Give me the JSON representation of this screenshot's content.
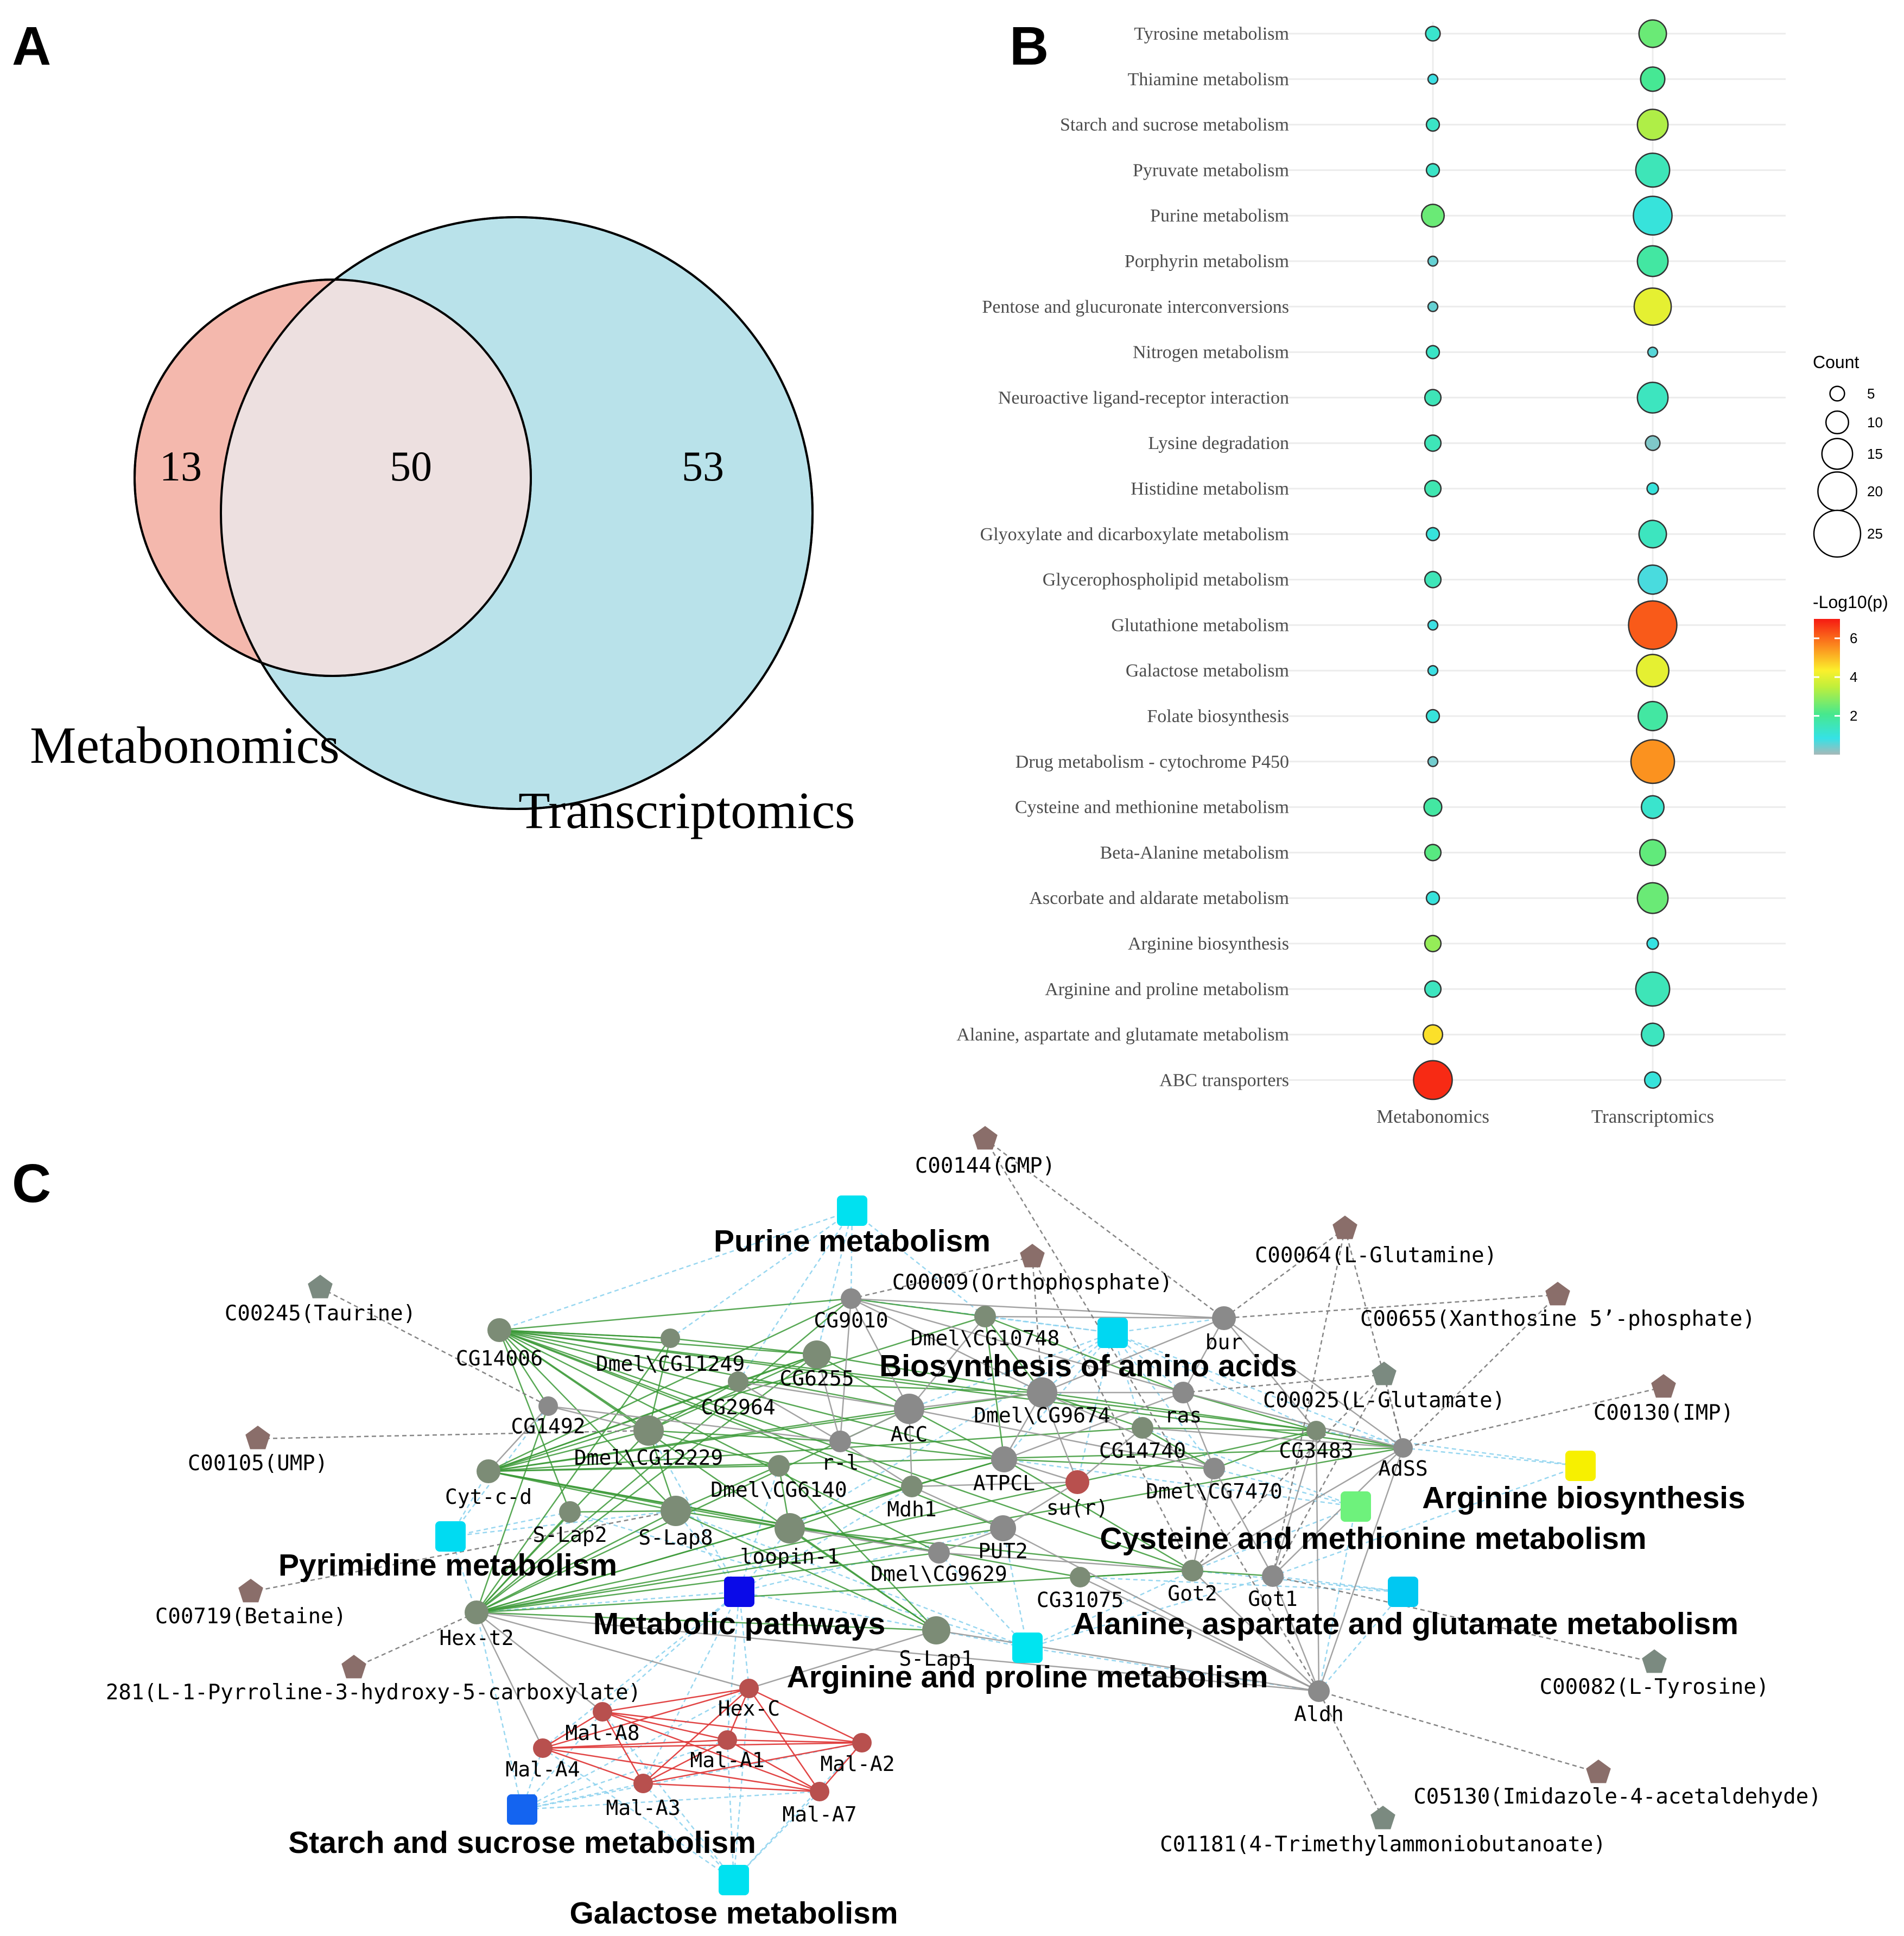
{
  "panels": {
    "a": "A",
    "b": "B",
    "c": "C"
  },
  "chart_data": [
    {
      "type": "venn",
      "sets": [
        {
          "name": "Metabonomics",
          "color": "#f4b8ad"
        },
        {
          "name": "Transcriptomics",
          "color": "#b9e2ea"
        }
      ],
      "regions": {
        "only_first": "13",
        "intersection": "50",
        "only_second": "53"
      }
    },
    {
      "type": "bubble",
      "columns": [
        "Metabonomics",
        "Transcriptomics"
      ],
      "size_legend": {
        "title": "Count",
        "values": [
          5,
          10,
          15,
          20,
          25
        ]
      },
      "color_legend": {
        "title": "-Log10(p)",
        "ticks": [
          2,
          4,
          6
        ],
        "range": [
          0,
          7
        ]
      },
      "rows": [
        {
          "pathway": "Tyrosine metabolism",
          "m": {
            "count": 5,
            "logp": 1.2
          },
          "t": {
            "count": 13,
            "logp": 2.5
          }
        },
        {
          "pathway": "Thiamine metabolism",
          "m": {
            "count": 2,
            "logp": 0.8
          },
          "t": {
            "count": 11,
            "logp": 2.0
          }
        },
        {
          "pathway": "Starch and sucrose metabolism",
          "m": {
            "count": 4,
            "logp": 1.3
          },
          "t": {
            "count": 15,
            "logp": 3.3
          }
        },
        {
          "pathway": "Pyruvate metabolism",
          "m": {
            "count": 4,
            "logp": 1.3
          },
          "t": {
            "count": 17,
            "logp": 1.5
          }
        },
        {
          "pathway": "Purine metabolism",
          "m": {
            "count": 10,
            "logp": 2.5
          },
          "t": {
            "count": 20,
            "logp": 1.0
          }
        },
        {
          "pathway": "Porphyrin metabolism",
          "m": {
            "count": 2,
            "logp": 0.5
          },
          "t": {
            "count": 15,
            "logp": 1.8
          }
        },
        {
          "pathway": "Pentose and glucuronate interconversions",
          "m": {
            "count": 2,
            "logp": 0.5
          },
          "t": {
            "count": 19,
            "logp": 4.0
          }
        },
        {
          "pathway": "Nitrogen metabolism",
          "m": {
            "count": 4,
            "logp": 1.3
          },
          "t": {
            "count": 2,
            "logp": 0.6
          }
        },
        {
          "pathway": "Neuroactive ligand-receptor interaction",
          "m": {
            "count": 6,
            "logp": 1.5
          },
          "t": {
            "count": 15,
            "logp": 1.4
          }
        },
        {
          "pathway": "Lysine degradation",
          "m": {
            "count": 6,
            "logp": 1.5
          },
          "t": {
            "count": 5,
            "logp": 0.3
          }
        },
        {
          "pathway": "Histidine metabolism",
          "m": {
            "count": 6,
            "logp": 1.6
          },
          "t": {
            "count": 3,
            "logp": 1.0
          }
        },
        {
          "pathway": "Glyoxylate and dicarboxylate metabolism",
          "m": {
            "count": 4,
            "logp": 1.0
          },
          "t": {
            "count": 13,
            "logp": 1.4
          }
        },
        {
          "pathway": "Glycerophospholipid metabolism",
          "m": {
            "count": 6,
            "logp": 1.5
          },
          "t": {
            "count": 14,
            "logp": 0.7
          }
        },
        {
          "pathway": "Glutathione metabolism",
          "m": {
            "count": 2,
            "logp": 0.8
          },
          "t": {
            "count": 26,
            "logp": 6.2
          }
        },
        {
          "pathway": "Galactose metabolism",
          "m": {
            "count": 2,
            "logp": 0.8
          },
          "t": {
            "count": 16,
            "logp": 4.0
          }
        },
        {
          "pathway": "Folate biosynthesis",
          "m": {
            "count": 4,
            "logp": 1.0
          },
          "t": {
            "count": 14,
            "logp": 1.8
          }
        },
        {
          "pathway": "Drug metabolism - cytochrome P450",
          "m": {
            "count": 2,
            "logp": 0.4
          },
          "t": {
            "count": 23,
            "logp": 5.5
          }
        },
        {
          "pathway": "Cysteine and methionine metabolism",
          "m": {
            "count": 7,
            "logp": 1.8
          },
          "t": {
            "count": 10,
            "logp": 1.2
          }
        },
        {
          "pathway": "Beta-Alanine metabolism",
          "m": {
            "count": 6,
            "logp": 2.3
          },
          "t": {
            "count": 12,
            "logp": 2.4
          }
        },
        {
          "pathway": "Ascorbate and aldarate metabolism",
          "m": {
            "count": 4,
            "logp": 1.0
          },
          "t": {
            "count": 15,
            "logp": 2.5
          }
        },
        {
          "pathway": "Arginine biosynthesis",
          "m": {
            "count": 6,
            "logp": 3.0
          },
          "t": {
            "count": 3,
            "logp": 0.9
          }
        },
        {
          "pathway": "Arginine and proline metabolism",
          "m": {
            "count": 6,
            "logp": 1.4
          },
          "t": {
            "count": 17,
            "logp": 1.5
          }
        },
        {
          "pathway": "Alanine, aspartate and glutamate metabolism",
          "m": {
            "count": 8,
            "logp": 4.5
          },
          "t": {
            "count": 10,
            "logp": 1.4
          }
        },
        {
          "pathway": "ABC transporters",
          "m": {
            "count": 20,
            "logp": 6.8
          },
          "t": {
            "count": 6,
            "logp": 1.0
          }
        }
      ]
    },
    {
      "type": "network",
      "pathway_labels": [
        "Purine metabolism",
        "Biosynthesis of amino acids",
        "Arginine biosynthesis",
        "Cysteine and methionine metabolism",
        "Pyrimidine metabolism",
        "Metabolic pathways",
        "Alanine, aspartate and glutamate metabolism",
        "Arginine and proline metabolism",
        "Starch and sucrose metabolism",
        "Galactose metabolism"
      ],
      "gene_labels": [
        "CG14006",
        "Dmel\\CG11249",
        "CG9010",
        "Dmel\\CG10748",
        "bur",
        "CG6255",
        "CG2964",
        "CG1492",
        "ACC",
        "Dmel\\CG9674",
        "ras",
        "Dmel\\CG12229",
        "CG14740",
        "CG3483",
        "AdSS",
        "r-l",
        "ATPCL",
        "Cyt-c-d",
        "Dmel\\CG6140",
        "Mdh1",
        "su(r)",
        "Dmel\\CG7470",
        "S-Lap2",
        "S-Lap8",
        "loopin-1",
        "PUT2",
        "Dmel\\CG9629",
        "CG31075",
        "Got2",
        "Got1",
        "Hex-t2",
        "S-Lap1",
        "Aldh",
        "Hex-C",
        "Mal-A8",
        "Mal-A1",
        "Mal-A2",
        "Mal-A4",
        "Mal-A3",
        "Mal-A7"
      ],
      "compound_labels": [
        "C00144(GMP)",
        "C00064(L-Glutamine)",
        "C00009(Orthophosphate)",
        "C00655(Xanthosine 5’-phosphate)",
        "C00245(Taurine)",
        "C00025(L-Glutamate)",
        "C00130(IMP)",
        "C00105(UMP)",
        "C00719(Betaine)",
        "281(L-1-Pyrroline-3-hydroxy-5-carboxylate)",
        "C00082(L-Tyrosine)",
        "C05130(Imidazole-4-acetaldehyde)",
        "C01181(4-Trimethylammoniobutanoate)"
      ]
    }
  ]
}
